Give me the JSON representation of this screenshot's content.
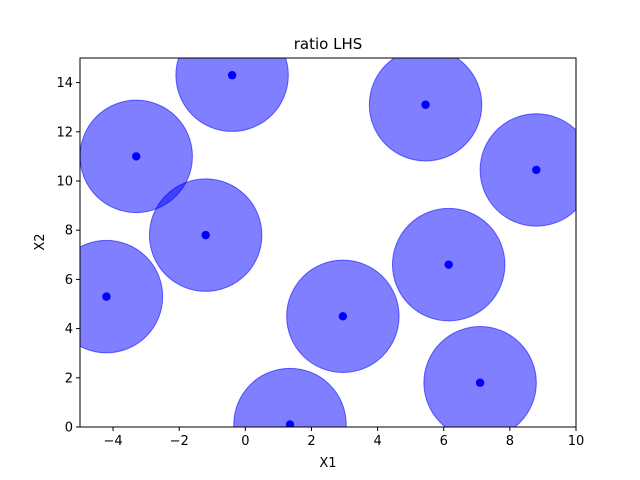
{
  "chart_data": {
    "type": "scatter",
    "title": "ratio LHS",
    "xlabel": "X1",
    "ylabel": "X2",
    "xlim": [
      -5,
      10
    ],
    "ylim": [
      0,
      15
    ],
    "xticks": [
      -4,
      -2,
      0,
      2,
      4,
      6,
      8,
      10
    ],
    "yticks": [
      0,
      2,
      4,
      6,
      8,
      10,
      12,
      14
    ],
    "xtick_labels": [
      "−4",
      "−2",
      "0",
      "2",
      "4",
      "6",
      "8",
      "10"
    ],
    "ytick_labels": [
      "0",
      "2",
      "4",
      "6",
      "8",
      "10",
      "12",
      "14"
    ],
    "grid": false,
    "circle_radius": 1.7,
    "colors": {
      "point": "#0000ff",
      "circle_fill": "#0000ff",
      "circle_opacity": 0.5
    },
    "points": [
      {
        "x": -4.2,
        "y": 5.3
      },
      {
        "x": -3.3,
        "y": 11.0
      },
      {
        "x": -1.2,
        "y": 7.8
      },
      {
        "x": -0.4,
        "y": 14.3
      },
      {
        "x": 1.35,
        "y": 0.1
      },
      {
        "x": 2.95,
        "y": 4.5
      },
      {
        "x": 5.45,
        "y": 13.1
      },
      {
        "x": 6.15,
        "y": 6.6
      },
      {
        "x": 7.1,
        "y": 1.8
      },
      {
        "x": 8.8,
        "y": 10.45
      }
    ]
  }
}
